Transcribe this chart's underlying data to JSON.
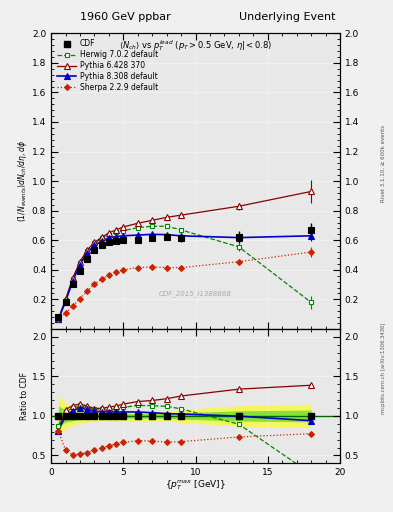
{
  "title_left": "1960 GeV ppbar",
  "title_right": "Underlying Event",
  "subtitle": "$\\langle N_{ch}\\rangle$ vs $p_T^{lead}$ ($p_T > 0.5$ GeV, $\\eta| < 0.8$)",
  "ylabel_main": "$(1/N_{events}) dN_{ch}/d\\eta, d\\phi$",
  "ylabel_ratio": "Ratio to CDF",
  "xlabel": "$\\{p_T^{max}$ [GeV]$\\}$",
  "watermark": "CDF_2015_I1388868",
  "right_label1": "Rivet 3.1.10, ≥ 600k events",
  "right_label2": "mcplots.cern.ch [arXiv:1306.3436]",
  "ylim_main": [
    0.0,
    2.0
  ],
  "ylim_ratio": [
    0.4,
    2.1
  ],
  "xlim": [
    0,
    20
  ],
  "yticks_main": [
    0.2,
    0.4,
    0.6,
    0.8,
    1.0,
    1.2,
    1.4,
    1.6,
    1.8,
    2.0
  ],
  "yticks_ratio": [
    0.5,
    1.0,
    1.5,
    2.0
  ],
  "xticks": [
    0,
    5,
    10,
    15,
    20
  ],
  "cdf_x": [
    0.5,
    1.0,
    1.5,
    2.0,
    2.5,
    3.0,
    3.5,
    4.0,
    4.5,
    5.0,
    6.0,
    7.0,
    8.0,
    9.0,
    13.0,
    18.0
  ],
  "cdf_y": [
    0.08,
    0.185,
    0.305,
    0.395,
    0.475,
    0.535,
    0.565,
    0.585,
    0.595,
    0.6,
    0.605,
    0.615,
    0.62,
    0.615,
    0.62,
    0.67
  ],
  "cdf_yerr": [
    0.01,
    0.015,
    0.018,
    0.018,
    0.018,
    0.018,
    0.018,
    0.018,
    0.018,
    0.018,
    0.018,
    0.018,
    0.018,
    0.025,
    0.04,
    0.05
  ],
  "herwig_x": [
    0.5,
    1.0,
    1.5,
    2.0,
    2.5,
    3.0,
    3.5,
    4.0,
    4.5,
    5.0,
    6.0,
    7.0,
    8.0,
    9.0,
    13.0,
    18.0
  ],
  "herwig_y": [
    0.07,
    0.195,
    0.335,
    0.445,
    0.525,
    0.58,
    0.615,
    0.635,
    0.655,
    0.665,
    0.685,
    0.695,
    0.695,
    0.67,
    0.555,
    0.18
  ],
  "herwig_yerr": [
    0.003,
    0.008,
    0.008,
    0.008,
    0.008,
    0.008,
    0.008,
    0.008,
    0.008,
    0.008,
    0.008,
    0.008,
    0.008,
    0.012,
    0.025,
    0.045
  ],
  "pythia6_x": [
    0.5,
    1.0,
    1.5,
    2.0,
    2.5,
    3.0,
    3.5,
    4.0,
    4.5,
    5.0,
    6.0,
    7.0,
    8.0,
    9.0,
    13.0,
    18.0
  ],
  "pythia6_y": [
    0.065,
    0.2,
    0.345,
    0.455,
    0.535,
    0.585,
    0.62,
    0.65,
    0.67,
    0.69,
    0.715,
    0.735,
    0.755,
    0.77,
    0.83,
    0.93
  ],
  "pythia6_yerr": [
    0.003,
    0.008,
    0.008,
    0.008,
    0.008,
    0.008,
    0.008,
    0.008,
    0.008,
    0.008,
    0.008,
    0.008,
    0.008,
    0.015,
    0.025,
    0.075
  ],
  "pythia8_x": [
    0.5,
    1.0,
    1.5,
    2.0,
    2.5,
    3.0,
    3.5,
    4.0,
    4.5,
    5.0,
    6.0,
    7.0,
    8.0,
    9.0,
    13.0,
    18.0
  ],
  "pythia8_y": [
    0.065,
    0.185,
    0.325,
    0.435,
    0.515,
    0.565,
    0.595,
    0.615,
    0.625,
    0.63,
    0.635,
    0.64,
    0.638,
    0.63,
    0.618,
    0.63
  ],
  "pythia8_yerr": [
    0.003,
    0.007,
    0.007,
    0.007,
    0.007,
    0.007,
    0.007,
    0.007,
    0.007,
    0.007,
    0.007,
    0.007,
    0.007,
    0.01,
    0.015,
    0.035
  ],
  "sherpa_x": [
    0.5,
    1.0,
    1.5,
    2.0,
    2.5,
    3.0,
    3.5,
    4.0,
    4.5,
    5.0,
    6.0,
    7.0,
    8.0,
    9.0,
    13.0,
    18.0
  ],
  "sherpa_y": [
    0.065,
    0.105,
    0.155,
    0.205,
    0.255,
    0.305,
    0.335,
    0.365,
    0.385,
    0.4,
    0.415,
    0.42,
    0.415,
    0.415,
    0.455,
    0.52
  ],
  "sherpa_yerr": [
    0.003,
    0.004,
    0.005,
    0.007,
    0.008,
    0.008,
    0.008,
    0.008,
    0.008,
    0.008,
    0.008,
    0.008,
    0.008,
    0.01,
    0.018,
    0.035
  ],
  "cdf_color": "#000000",
  "herwig_color": "#008800",
  "pythia6_color": "#880000",
  "pythia8_color": "#0000cc",
  "sherpa_color": "#cc2200",
  "legend_labels": [
    "CDF",
    "Herwig 7.0.2 default",
    "Pythia 6.428 370",
    "Pythia 8.308 default",
    "Sherpa 2.2.9 default"
  ],
  "fig_bg": "#f0f0f0",
  "plot_bg": "#e8e8e8"
}
